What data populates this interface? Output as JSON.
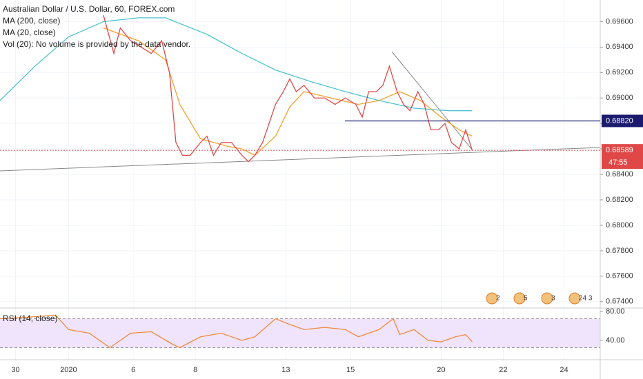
{
  "chart_data": [
    {
      "type": "line",
      "title": "Australian Dollar / U.S. Dollar, 60, FOREX.com",
      "legend": [
        "MA (200, close)",
        "MA (20, close)",
        "Vol (20): No volume is provided by the data vendor."
      ],
      "color": "#e04848",
      "x": [
        80,
        88,
        93,
        101,
        109,
        117,
        125,
        131,
        136,
        141,
        147,
        155,
        160,
        165,
        171,
        179,
        187,
        192,
        197,
        203,
        208,
        213,
        219,
        224,
        229,
        235,
        243,
        251,
        259,
        267,
        275,
        280,
        285,
        291,
        296,
        301,
        307,
        312,
        317,
        323,
        328,
        333,
        339,
        344,
        349,
        355,
        360,
        365
      ],
      "values": [
        0.6965,
        0.6935,
        0.6955,
        0.6945,
        0.694,
        0.6935,
        0.6945,
        0.692,
        0.6865,
        0.6855,
        0.6855,
        0.6865,
        0.687,
        0.6855,
        0.6865,
        0.6865,
        0.6855,
        0.685,
        0.6855,
        0.6865,
        0.688,
        0.6895,
        0.6905,
        0.6915,
        0.6905,
        0.691,
        0.69,
        0.69,
        0.6895,
        0.69,
        0.6895,
        0.6885,
        0.6905,
        0.6905,
        0.691,
        0.6925,
        0.6905,
        0.6895,
        0.689,
        0.6905,
        0.6895,
        0.6875,
        0.6875,
        0.688,
        0.6865,
        0.686,
        0.6875,
        0.6859
      ],
      "series": [
        {
          "name": "MA (200, close)",
          "color": "#4dc3d0",
          "x": [
            0,
            27,
            53,
            80,
            107,
            128,
            160,
            187,
            213,
            240,
            267,
            293,
            320,
            347,
            365
          ],
          "values": [
            0.6898,
            0.6925,
            0.6948,
            0.696,
            0.6963,
            0.6963,
            0.695,
            0.6935,
            0.6922,
            0.6913,
            0.6905,
            0.6898,
            0.6892,
            0.689,
            0.689
          ]
        },
        {
          "name": "MA (20, close)",
          "color": "#f5a030",
          "x": [
            80,
            107,
            128,
            139,
            155,
            176,
            187,
            197,
            213,
            224,
            235,
            256,
            277,
            293,
            309,
            325,
            341,
            355,
            365
          ],
          "values": [
            0.6955,
            0.6945,
            0.693,
            0.6895,
            0.6868,
            0.6862,
            0.686,
            0.6855,
            0.687,
            0.6893,
            0.6905,
            0.69,
            0.6895,
            0.6898,
            0.6905,
            0.6898,
            0.6885,
            0.6875,
            0.687
          ]
        }
      ],
      "level": {
        "value": 0.6882,
        "label": "0.68820"
      },
      "last_price": {
        "value": 0.68589,
        "label": "0.68589"
      },
      "countdown": "47:55",
      "events": [
        "2",
        "5",
        "3",
        "24 3"
      ],
      "xlim": [
        0,
        464
      ],
      "xticks": [
        {
          "value": 12,
          "label": "30"
        },
        {
          "value": 53,
          "label": "2020"
        },
        {
          "value": 103,
          "label": "6"
        },
        {
          "value": 151,
          "label": "8"
        },
        {
          "value": 221,
          "label": "13"
        },
        {
          "value": 271,
          "label": "15"
        },
        {
          "value": 341,
          "label": "20"
        },
        {
          "value": 389,
          "label": "22"
        },
        {
          "value": 436,
          "label": "24"
        }
      ],
      "ylim": [
        0.6735,
        0.6977
      ],
      "yticks": [
        {
          "value": 0.696,
          "label": "0.69600"
        },
        {
          "value": 0.694,
          "label": "0.69400"
        },
        {
          "value": 0.692,
          "label": "0.69200"
        },
        {
          "value": 0.69,
          "label": "0.69000"
        },
        {
          "value": 0.688,
          "label": "0.68800"
        },
        {
          "value": 0.686,
          "label": "0.68600"
        },
        {
          "value": 0.684,
          "label": "0.68400"
        },
        {
          "value": 0.682,
          "label": "0.68200"
        },
        {
          "value": 0.68,
          "label": "0.68000"
        },
        {
          "value": 0.678,
          "label": "0.67800"
        },
        {
          "value": 0.676,
          "label": "0.67600"
        },
        {
          "value": 0.674,
          "label": "0.67400"
        }
      ],
      "grid": true
    },
    {
      "type": "line",
      "title": "RSI (14, close)",
      "color": "#f08a3c",
      "x": [
        0,
        21,
        43,
        53,
        69,
        85,
        101,
        117,
        133,
        139,
        155,
        171,
        187,
        197,
        213,
        224,
        235,
        251,
        267,
        277,
        293,
        304,
        309,
        320,
        331,
        341,
        352,
        360,
        365
      ],
      "values": [
        70,
        72,
        75,
        55,
        50,
        30,
        50,
        52,
        35,
        30,
        45,
        50,
        40,
        45,
        70,
        62,
        55,
        58,
        55,
        45,
        55,
        70,
        48,
        55,
        40,
        38,
        45,
        48,
        38
      ],
      "levels": [
        30,
        70
      ],
      "ylim": [
        13.3,
        84.8
      ],
      "yticks": [
        {
          "value": 80,
          "label": "80.00"
        },
        {
          "value": 40,
          "label": "40.00"
        }
      ]
    }
  ]
}
